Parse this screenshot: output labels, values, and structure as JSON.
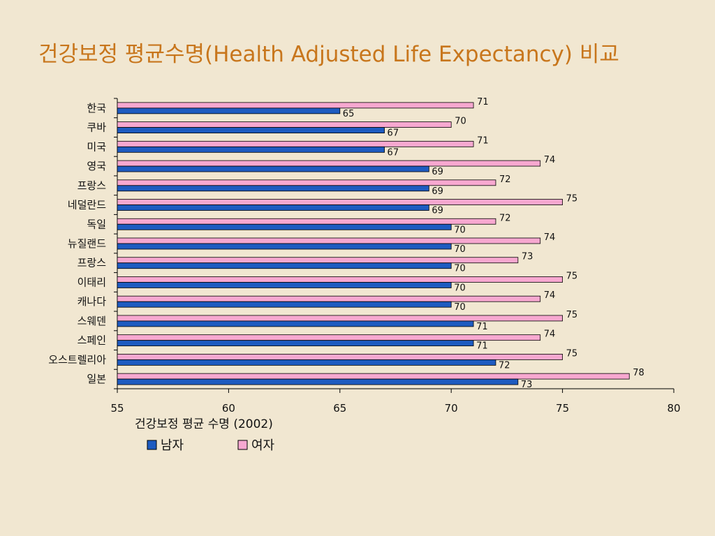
{
  "title": "건강보정 평균수명(Health Adjusted Life Expectancy) 비교",
  "chart_data": {
    "type": "bar",
    "orientation": "horizontal",
    "xlabel": "건강보정 평균 수명 (2002)",
    "xlim": [
      55,
      80
    ],
    "xticks": [
      55,
      60,
      65,
      70,
      75,
      80
    ],
    "categories": [
      "한국",
      "쿠바",
      "미국",
      "영국",
      "프랑스",
      "네덜란드",
      "독일",
      "뉴질랜드",
      "프랑스",
      "이태리",
      "캐나다",
      "스웨덴",
      "스페인",
      "오스트렐리아",
      "일본"
    ],
    "series": [
      {
        "name": "여자",
        "color": "#f7a8d0",
        "values": [
          71,
          70,
          71,
          74,
          72,
          75,
          72,
          74,
          73,
          75,
          74,
          75,
          74,
          75,
          78
        ]
      },
      {
        "name": "남자",
        "color": "#1e5bc0",
        "values": [
          65,
          67,
          67,
          69,
          69,
          69,
          70,
          70,
          70,
          70,
          70,
          71,
          71,
          72,
          73
        ]
      }
    ],
    "legend": {
      "position": "bottom-left",
      "order": [
        "남자",
        "여자"
      ]
    },
    "grid": false
  }
}
